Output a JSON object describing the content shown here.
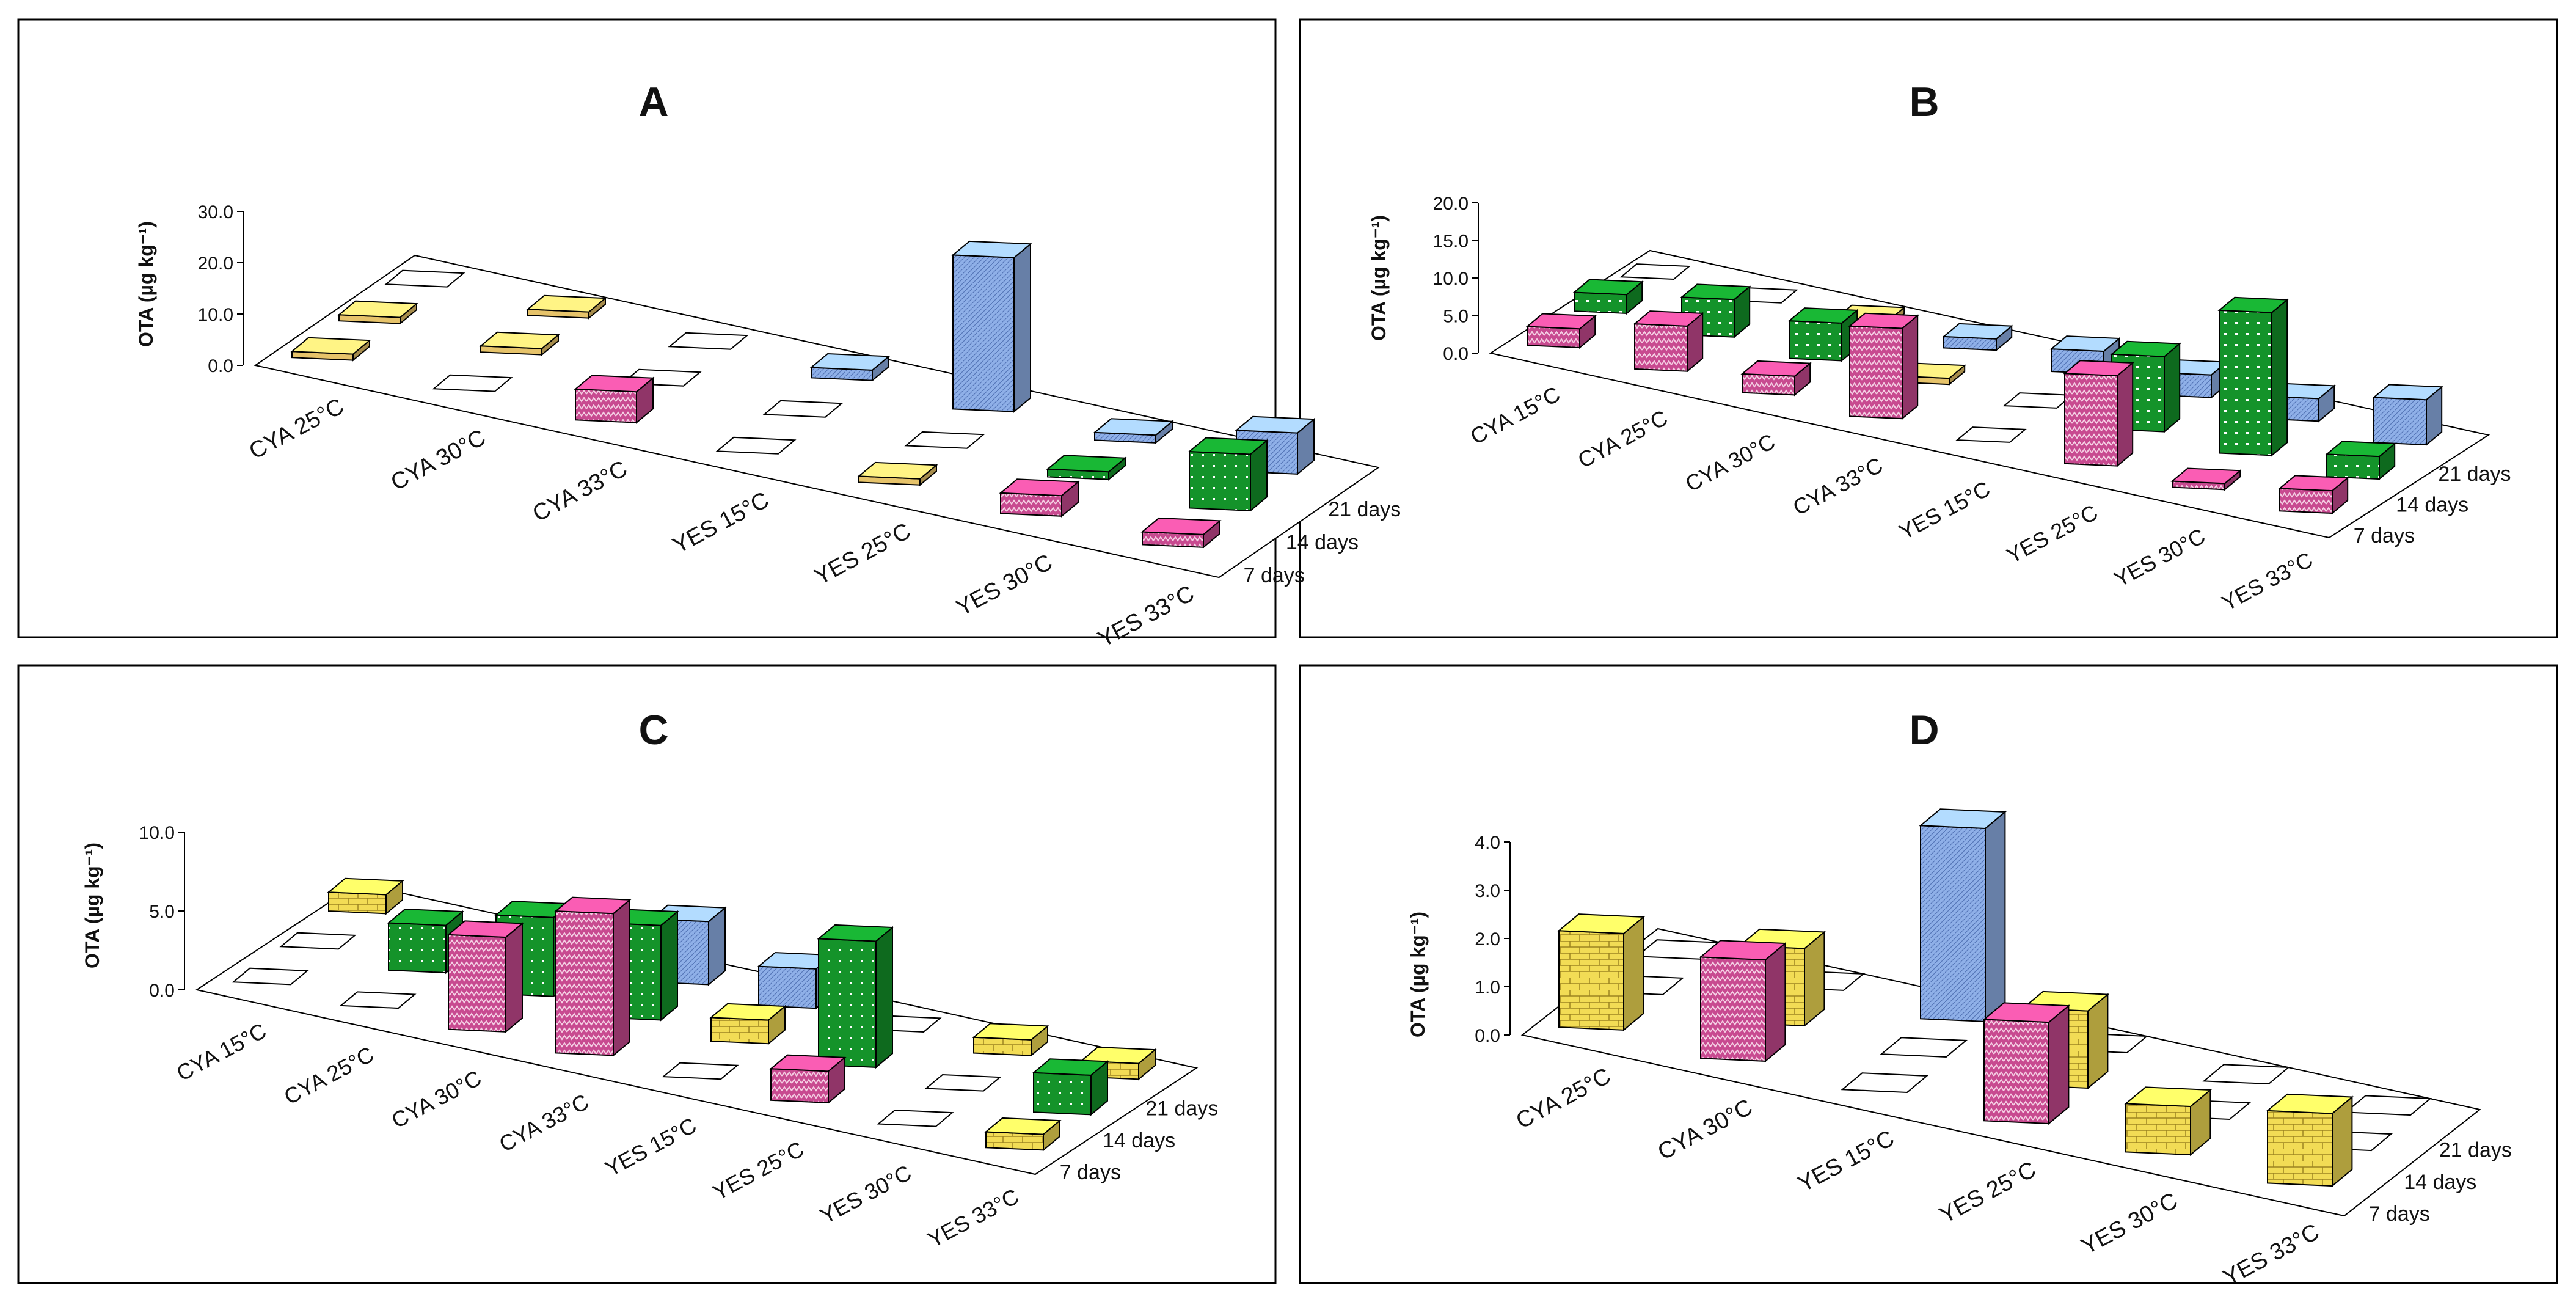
{
  "chart_data": [
    {
      "type": "bar",
      "title": "A",
      "ylabel": "OTA (µg kg⁻¹)",
      "ylim": [
        0,
        30
      ],
      "yticks": [
        "0.0",
        "10.0",
        "20.0",
        "30.0"
      ],
      "categories": [
        "CYA 25°C",
        "CYA 30°C",
        "CYA 33°C",
        "YES 15°C",
        "YES 25°C",
        "YES 30°C",
        "YES 33°C"
      ],
      "series": [
        {
          "name": "7 days",
          "values": [
            0.6,
            0,
            6,
            0,
            0.3,
            4,
            2.5
          ]
        },
        {
          "name": "14 days",
          "values": [
            0.8,
            0.6,
            0,
            0,
            0,
            1.5,
            11
          ]
        },
        {
          "name": "21 days",
          "values": [
            0,
            0.6,
            0,
            2,
            30,
            1.5,
            8
          ]
        }
      ]
    },
    {
      "type": "bar",
      "title": "B",
      "ylabel": "OTA (µg kg⁻¹)",
      "ylim": [
        0,
        20
      ],
      "yticks": [
        "0.0",
        "5.0",
        "10.0",
        "15.0",
        "20.0"
      ],
      "categories": [
        "CYA 15°C",
        "CYA 25°C",
        "CYA 30°C",
        "CYA 33°C",
        "YES 15°C",
        "YES 25°C",
        "YES 30°C",
        "YES 33°C"
      ],
      "series": [
        {
          "name": "7 days",
          "values": [
            2.5,
            6,
            2.5,
            12,
            0,
            12,
            0.3,
            3
          ]
        },
        {
          "name": "14 days",
          "values": [
            2.5,
            5,
            5,
            0.4,
            0,
            10,
            19,
            3
          ]
        },
        {
          "name": "21 days",
          "values": [
            0,
            0,
            0.4,
            1.5,
            3,
            3,
            3,
            6
          ]
        }
      ]
    },
    {
      "type": "bar",
      "title": "C",
      "ylabel": "OTA (µg kg⁻¹)",
      "ylim": [
        0,
        10
      ],
      "yticks": [
        "0.0",
        "5.0",
        "10.0"
      ],
      "categories": [
        "CYA 15°C",
        "CYA 25°C",
        "CYA 30°C",
        "CYA 33°C",
        "YES 15°C",
        "YES 25°C",
        "YES 30°C",
        "YES 33°C"
      ],
      "series": [
        {
          "name": "7 days",
          "values": [
            0,
            0,
            6,
            9,
            0,
            2,
            0,
            1
          ]
        },
        {
          "name": "14 days",
          "values": [
            0,
            3,
            5,
            6,
            1.5,
            8,
            0,
            2.5
          ]
        },
        {
          "name": "21 days",
          "values": [
            1.2,
            0,
            1.2,
            4,
            2.5,
            0,
            1,
            1
          ]
        }
      ]
    },
    {
      "type": "bar",
      "title": "D",
      "ylabel": "OTA (µg kg⁻¹)",
      "ylim": [
        0,
        4
      ],
      "yticks": [
        "0.0",
        "1.0",
        "2.0",
        "3.0",
        "4.0"
      ],
      "categories": [
        "CYA 25°C",
        "CYA 30°C",
        "YES 15°C",
        "YES 25°C",
        "YES 30°C",
        "YES 33°C"
      ],
      "series": [
        {
          "name": "7 days",
          "values": [
            2,
            2.1,
            0,
            2.1,
            1,
            1.5
          ]
        },
        {
          "name": "14 days",
          "values": [
            0,
            1.6,
            0,
            1.6,
            0,
            0
          ]
        },
        {
          "name": "21 days",
          "values": [
            0,
            0,
            4,
            0,
            0,
            0
          ]
        }
      ]
    }
  ],
  "colors": {
    "CYA": "#e6c36a",
    "YES": "#f2dc55",
    "day7": "#c84a90",
    "day14": "#14932a",
    "day21": "#8fb0e8"
  }
}
